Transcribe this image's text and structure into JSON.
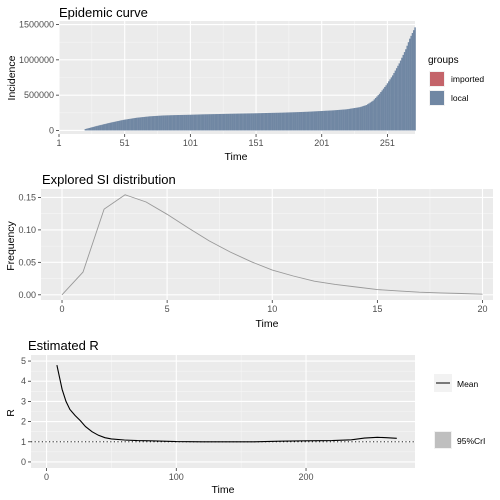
{
  "chart_data": [
    {
      "type": "bar",
      "title": "Epidemic curve",
      "xlabel": "Time",
      "ylabel": "Incidence",
      "xlim": [
        1,
        272
      ],
      "ylim": [
        -50000,
        1550000
      ],
      "xticks": [
        1,
        51,
        101,
        151,
        201,
        251
      ],
      "yticks": [
        0,
        500000,
        1000000,
        1500000
      ],
      "grid": true,
      "legend": {
        "title": "groups",
        "position": "right",
        "entries": [
          {
            "label": "imported",
            "color": "#c4646a"
          },
          {
            "label": "local",
            "color": "#7087a3"
          }
        ]
      },
      "series": [
        {
          "name": "local",
          "color": "#7087a3",
          "x": [
            1,
            10,
            20,
            21,
            30,
            40,
            50,
            60,
            70,
            80,
            90,
            100,
            110,
            120,
            130,
            140,
            150,
            160,
            170,
            180,
            190,
            200,
            210,
            220,
            230,
            235,
            240,
            245,
            250,
            255,
            260,
            265,
            268,
            272
          ],
          "values": [
            0,
            0,
            0,
            20000,
            65000,
            110000,
            150000,
            180000,
            200000,
            212000,
            218000,
            222000,
            228000,
            232000,
            236000,
            240000,
            243000,
            248000,
            252000,
            258000,
            265000,
            275000,
            285000,
            300000,
            330000,
            360000,
            420000,
            520000,
            640000,
            780000,
            950000,
            1150000,
            1300000,
            1460000
          ]
        },
        {
          "name": "imported",
          "color": "#c4646a",
          "x": [
            1
          ],
          "values": [
            1
          ]
        }
      ]
    },
    {
      "type": "line",
      "title": "Explored SI distribution",
      "xlabel": "Time",
      "ylabel": "Frequency",
      "xlim": [
        -1,
        20.5
      ],
      "ylim": [
        -0.008,
        0.163
      ],
      "xticks": [
        0,
        5,
        10,
        15,
        20
      ],
      "yticks": [
        0.0,
        0.05,
        0.1,
        0.15
      ],
      "ytick_labels": [
        "0.00",
        "0.05",
        "0.10",
        "0.15"
      ],
      "grid": true,
      "series": [
        {
          "color": "#999999",
          "x": [
            0,
            1,
            2,
            3,
            4,
            5,
            6,
            7,
            8,
            9,
            10,
            11,
            12,
            13,
            14,
            15,
            16,
            17,
            18,
            19,
            20
          ],
          "values": [
            0.0,
            0.035,
            0.132,
            0.154,
            0.143,
            0.124,
            0.103,
            0.083,
            0.066,
            0.051,
            0.038,
            0.029,
            0.021,
            0.016,
            0.012,
            0.008,
            0.006,
            0.004,
            0.003,
            0.002,
            0.001
          ]
        }
      ]
    },
    {
      "type": "line",
      "title": "Estimated R",
      "xlabel": "Time",
      "ylabel": "R",
      "xlim": [
        -12,
        284
      ],
      "ylim": [
        -0.3,
        5.3
      ],
      "xticks": [
        0,
        100,
        200
      ],
      "yticks": [
        0,
        1,
        2,
        3,
        4,
        5
      ],
      "grid": true,
      "reference_line": 1,
      "legend": {
        "position": "right",
        "entries": [
          {
            "label": "Mean",
            "kind": "line",
            "color": "#000000"
          },
          {
            "label": "95%CrI",
            "kind": "band",
            "color": "#bfbfbf"
          }
        ]
      },
      "series": [
        {
          "name": "Mean",
          "color": "#000000",
          "x": [
            8,
            10,
            12,
            15,
            18,
            22,
            26,
            30,
            35,
            40,
            45,
            50,
            60,
            70,
            80,
            100,
            120,
            140,
            160,
            180,
            200,
            220,
            235,
            245,
            255,
            262,
            270
          ],
          "values": [
            4.8,
            4.2,
            3.6,
            3.0,
            2.6,
            2.3,
            2.05,
            1.75,
            1.5,
            1.32,
            1.2,
            1.14,
            1.09,
            1.06,
            1.05,
            1.01,
            1.0,
            1.0,
            1.0,
            1.03,
            1.05,
            1.06,
            1.1,
            1.18,
            1.22,
            1.2,
            1.17
          ]
        }
      ]
    }
  ]
}
